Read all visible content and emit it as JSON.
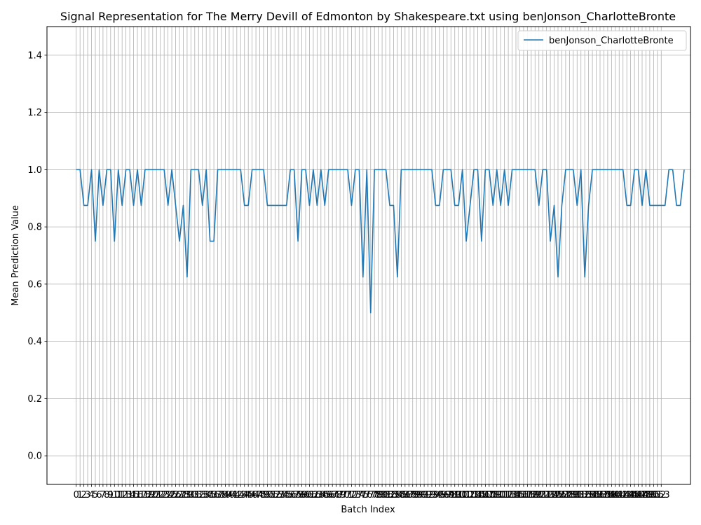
{
  "chart_data": {
    "type": "line",
    "title": "Signal Representation for The Merry Devill of Edmonton by Shakespeare.txt using benJonson_CharlotteBronte",
    "xlabel": "Batch Index",
    "ylabel": "Mean Prediction Value",
    "xlim": [
      -7.65,
      160.65
    ],
    "ylim": [
      -0.1,
      1.5
    ],
    "yticks": [
      0.0,
      0.2,
      0.4,
      0.6,
      0.8,
      1.0,
      1.2,
      1.4
    ],
    "ytick_labels": [
      "0.0",
      "0.2",
      "0.4",
      "0.6",
      "0.8",
      "1.0",
      "1.2",
      "1.4"
    ],
    "xticks_count": 154,
    "grid": true,
    "legend_position": "top-right",
    "series": [
      {
        "name": "benJonson_CharlotteBronte",
        "color": "#1f77b4",
        "values": [
          1.0,
          1.0,
          0.875,
          0.875,
          1.0,
          0.75,
          1.0,
          0.875,
          1.0,
          1.0,
          0.75,
          1.0,
          0.875,
          1.0,
          1.0,
          0.875,
          1.0,
          0.875,
          1.0,
          1.0,
          1.0,
          1.0,
          1.0,
          1.0,
          0.875,
          1.0,
          0.875,
          0.75,
          0.875,
          0.625,
          1.0,
          1.0,
          1.0,
          0.875,
          1.0,
          0.75,
          0.75,
          1.0,
          1.0,
          1.0,
          1.0,
          1.0,
          1.0,
          1.0,
          0.875,
          0.875,
          1.0,
          1.0,
          1.0,
          1.0,
          0.875,
          0.875,
          0.875,
          0.875,
          0.875,
          0.875,
          1.0,
          1.0,
          0.75,
          1.0,
          1.0,
          0.875,
          1.0,
          0.875,
          1.0,
          0.875,
          1.0,
          1.0,
          1.0,
          1.0,
          1.0,
          1.0,
          0.875,
          1.0,
          1.0,
          0.625,
          1.0,
          0.5,
          1.0,
          1.0,
          1.0,
          1.0,
          0.875,
          0.875,
          0.625,
          1.0,
          1.0,
          1.0,
          1.0,
          1.0,
          1.0,
          1.0,
          1.0,
          1.0,
          0.875,
          0.875,
          1.0,
          1.0,
          1.0,
          0.875,
          0.875,
          1.0,
          0.75,
          0.875,
          1.0,
          1.0,
          0.75,
          1.0,
          1.0,
          0.875,
          1.0,
          0.875,
          1.0,
          0.875,
          1.0,
          1.0,
          1.0,
          1.0,
          1.0,
          1.0,
          1.0,
          0.875,
          1.0,
          1.0,
          0.75,
          0.875,
          0.625,
          0.875,
          1.0,
          1.0,
          1.0,
          0.875,
          1.0,
          0.625,
          0.875,
          1.0,
          1.0,
          1.0,
          1.0,
          1.0,
          1.0,
          1.0,
          1.0,
          1.0,
          0.875,
          0.875,
          1.0,
          1.0,
          0.875,
          1.0,
          0.875,
          0.875,
          0.875,
          0.875,
          0.875,
          1.0,
          1.0,
          0.875,
          0.875,
          1.0
        ]
      }
    ]
  }
}
